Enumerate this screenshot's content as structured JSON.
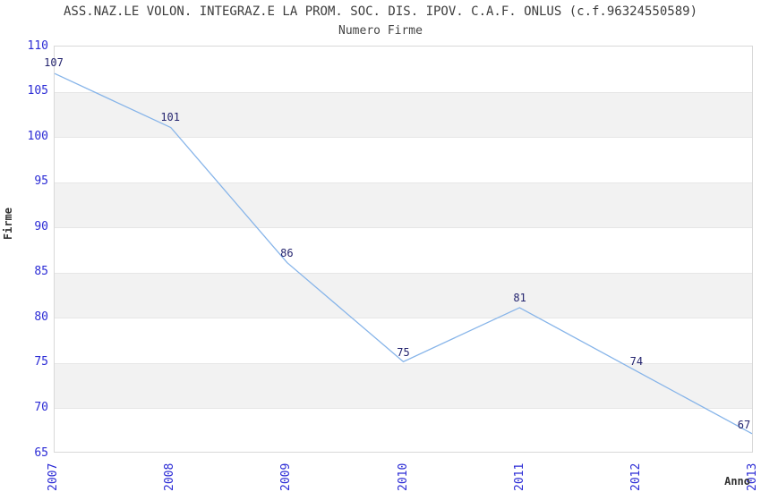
{
  "chart_data": {
    "type": "line",
    "title": "ASS.NAZ.LE VOLON. INTEGRAZ.E LA PROM. SOC. DIS. IPOV. C.A.F. ONLUS (c.f.96324550589)",
    "subtitle": "Numero Firme",
    "xlabel": "Anno",
    "ylabel": "Firme",
    "categories": [
      "2007",
      "2008",
      "2009",
      "2010",
      "2011",
      "2012",
      "2013"
    ],
    "series": [
      {
        "name": "Numero Firme",
        "values": [
          107,
          101,
          86,
          75,
          81,
          74,
          67
        ]
      }
    ],
    "ylim": [
      65,
      110
    ],
    "yticks": [
      65,
      70,
      75,
      80,
      85,
      90,
      95,
      100,
      105,
      110
    ],
    "grid": "alternating-horizontal-bands",
    "legend": "none",
    "data_labels_visible": true,
    "colors": {
      "line": "#86b4e9",
      "axis_tick_label": "#2b2bd5",
      "data_label": "#23236e",
      "band_gray": "#f2f2f2",
      "plot_border": "#d9d9d9",
      "gridline": "#e6e6e6",
      "title_text": "#3c3c3c"
    }
  }
}
